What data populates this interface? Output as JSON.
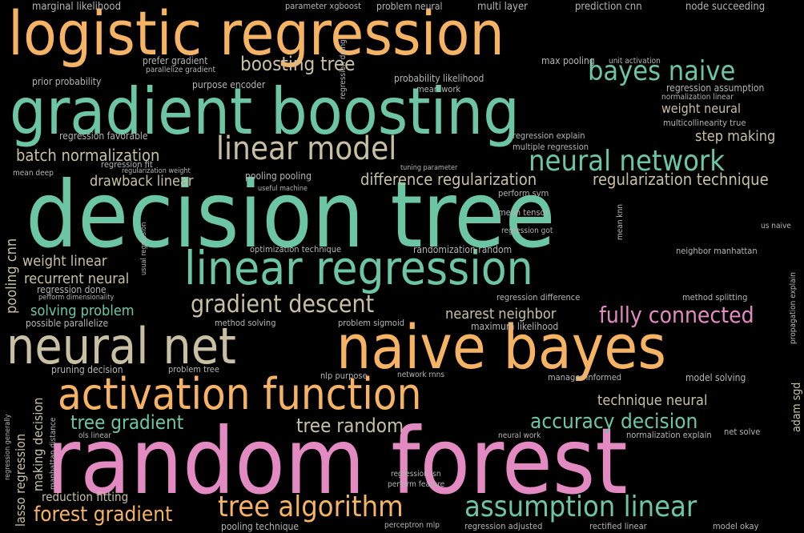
{
  "colors": {
    "orange": "#f5b363",
    "teal": "#6cc6a3",
    "pink": "#e48ac2",
    "khaki": "#c9c0a3",
    "blue": "#8ca2cc",
    "gray": "#b4b4b4",
    "background": "#000000"
  },
  "words": [
    {
      "id": "w1",
      "text": "logistic regression",
      "color": "orange"
    },
    {
      "id": "w2",
      "text": "gradient boosting",
      "color": "teal"
    },
    {
      "id": "w3",
      "text": "decision tree",
      "color": "teal"
    },
    {
      "id": "w4",
      "text": "random forest",
      "color": "pink"
    },
    {
      "id": "w5",
      "text": "naive bayes",
      "color": "orange"
    },
    {
      "id": "w6",
      "text": "neural net",
      "color": "khaki"
    },
    {
      "id": "w7",
      "text": "linear regression",
      "color": "teal"
    },
    {
      "id": "w8",
      "text": "activation function",
      "color": "orange"
    },
    {
      "id": "w9",
      "text": "linear model",
      "color": "khaki"
    },
    {
      "id": "w10",
      "text": "neural network",
      "color": "teal"
    },
    {
      "id": "w11",
      "text": "bayes naive",
      "color": "teal"
    },
    {
      "id": "w12",
      "text": "tree algorithm",
      "color": "orange"
    },
    {
      "id": "w13",
      "text": "assumption linear",
      "color": "teal"
    },
    {
      "id": "w14",
      "text": "gradient descent",
      "color": "khaki"
    },
    {
      "id": "w15",
      "text": "fully connected",
      "color": "pink"
    },
    {
      "id": "w16",
      "text": "forest gradient",
      "color": "orange"
    },
    {
      "id": "w17",
      "text": "boosting tree",
      "color": "khaki"
    },
    {
      "id": "w18",
      "text": "tree gradient",
      "color": "teal"
    },
    {
      "id": "w19",
      "text": "accuracy decision",
      "color": "teal"
    },
    {
      "id": "w20",
      "text": "tree random",
      "color": "khaki"
    },
    {
      "id": "w21",
      "text": "difference regularization",
      "color": "khaki"
    },
    {
      "id": "w22",
      "text": "regularization technique",
      "color": "khaki"
    },
    {
      "id": "w23",
      "text": "batch normalization",
      "color": "khaki"
    },
    {
      "id": "w24",
      "text": "drawback linear",
      "color": "khaki"
    },
    {
      "id": "w25",
      "text": "weight linear",
      "color": "khaki"
    },
    {
      "id": "w26",
      "text": "recurrent neural",
      "color": "khaki"
    },
    {
      "id": "w27",
      "text": "solving problem",
      "color": "teal"
    },
    {
      "id": "w28",
      "text": "nearest neighbor",
      "color": "khaki"
    },
    {
      "id": "w29",
      "text": "technique neural",
      "color": "khaki"
    },
    {
      "id": "w30",
      "text": "step making",
      "color": "khaki"
    },
    {
      "id": "w31",
      "text": "weight neural",
      "color": "khaki"
    },
    {
      "id": "w32",
      "text": "lasso regression",
      "color": "khaki"
    },
    {
      "id": "w33",
      "text": "making decision",
      "color": "khaki"
    },
    {
      "id": "w34",
      "text": "reduction fitting",
      "color": "khaki"
    },
    {
      "id": "w35",
      "text": "pooling cnn",
      "color": "khaki"
    },
    {
      "id": "w36",
      "text": "marginal likelihood",
      "color": "gray"
    },
    {
      "id": "w37",
      "text": "parameter xgboost",
      "color": "gray"
    },
    {
      "id": "w38",
      "text": "problem neural",
      "color": "gray"
    },
    {
      "id": "w39",
      "text": "multi layer",
      "color": "gray"
    },
    {
      "id": "w40",
      "text": "prediction cnn",
      "color": "gray"
    },
    {
      "id": "w41",
      "text": "node succeeding",
      "color": "gray"
    },
    {
      "id": "w42",
      "text": "prefer gradient",
      "color": "gray"
    },
    {
      "id": "w43",
      "text": "parallelize gradient",
      "color": "gray"
    },
    {
      "id": "w44",
      "text": "prior probability",
      "color": "gray"
    },
    {
      "id": "w45",
      "text": "purpose encoder",
      "color": "gray"
    },
    {
      "id": "w46",
      "text": "probability likelihood",
      "color": "gray"
    },
    {
      "id": "w47",
      "text": "mean work",
      "color": "gray"
    },
    {
      "id": "w48",
      "text": "max pooling",
      "color": "gray"
    },
    {
      "id": "w49",
      "text": "unit activation",
      "color": "gray"
    },
    {
      "id": "w50",
      "text": "regression assumption",
      "color": "gray"
    },
    {
      "id": "w51",
      "text": "normalization linear",
      "color": "gray"
    },
    {
      "id": "w52",
      "text": "multicollinearity true",
      "color": "gray"
    },
    {
      "id": "w53",
      "text": "regression favorable",
      "color": "gray"
    },
    {
      "id": "w54",
      "text": "regression fit",
      "color": "gray"
    },
    {
      "id": "w55",
      "text": "regularization weight",
      "color": "gray"
    },
    {
      "id": "w56",
      "text": "mean deep",
      "color": "gray"
    },
    {
      "id": "w57",
      "text": "regression explain",
      "color": "gray"
    },
    {
      "id": "w58",
      "text": "multiple regression",
      "color": "gray"
    },
    {
      "id": "w59",
      "text": "tuning parameter",
      "color": "gray"
    },
    {
      "id": "w60",
      "text": "pooling pooling",
      "color": "gray"
    },
    {
      "id": "w61",
      "text": "useful machine",
      "color": "gray"
    },
    {
      "id": "w62",
      "text": "perform svm",
      "color": "gray"
    },
    {
      "id": "w63",
      "text": "mean tensor",
      "color": "gray"
    },
    {
      "id": "w64",
      "text": "regression got",
      "color": "gray"
    },
    {
      "id": "w65",
      "text": "us naive",
      "color": "gray"
    },
    {
      "id": "w66",
      "text": "optimization technique",
      "color": "gray"
    },
    {
      "id": "w67",
      "text": "randomization random",
      "color": "gray"
    },
    {
      "id": "w68",
      "text": "neighbor manhattan",
      "color": "gray"
    },
    {
      "id": "w69",
      "text": "regression done",
      "color": "gray"
    },
    {
      "id": "w70",
      "text": "perform dimensionality",
      "color": "gray"
    },
    {
      "id": "w71",
      "text": "possible parallelize",
      "color": "gray"
    },
    {
      "id": "w72",
      "text": "method solving",
      "color": "gray"
    },
    {
      "id": "w73",
      "text": "problem sigmoid",
      "color": "gray"
    },
    {
      "id": "w74",
      "text": "maximum likelihood",
      "color": "gray"
    },
    {
      "id": "w75",
      "text": "regression difference",
      "color": "gray"
    },
    {
      "id": "w76",
      "text": "method splitting",
      "color": "gray"
    },
    {
      "id": "w77",
      "text": "pruning decision",
      "color": "gray"
    },
    {
      "id": "w78",
      "text": "problem tree",
      "color": "gray"
    },
    {
      "id": "w79",
      "text": "nlp purpose",
      "color": "gray"
    },
    {
      "id": "w80",
      "text": "network rnns",
      "color": "gray"
    },
    {
      "id": "w81",
      "text": "manager informed",
      "color": "gray"
    },
    {
      "id": "w82",
      "text": "model solving",
      "color": "gray"
    },
    {
      "id": "w83",
      "text": "net solve",
      "color": "gray"
    },
    {
      "id": "w84",
      "text": "ols linear",
      "color": "gray"
    },
    {
      "id": "w85",
      "text": "neural work",
      "color": "gray"
    },
    {
      "id": "w86",
      "text": "normalization explain",
      "color": "gray"
    },
    {
      "id": "w87",
      "text": "regression isn",
      "color": "gray"
    },
    {
      "id": "w88",
      "text": "perform feature",
      "color": "gray"
    },
    {
      "id": "w89",
      "text": "pooling technique",
      "color": "gray"
    },
    {
      "id": "w90",
      "text": "perceptron mlp",
      "color": "gray"
    },
    {
      "id": "w91",
      "text": "regression adjusted",
      "color": "gray"
    },
    {
      "id": "w92",
      "text": "rectified linear",
      "color": "gray"
    },
    {
      "id": "w93",
      "text": "model okay",
      "color": "gray"
    },
    {
      "id": "w94",
      "text": "adam sgd",
      "color": "khaki"
    },
    {
      "id": "w95",
      "text": "regression doing",
      "color": "gray"
    },
    {
      "id": "w96",
      "text": "usual regression",
      "color": "gray"
    },
    {
      "id": "w97",
      "text": "mean knn",
      "color": "gray"
    },
    {
      "id": "w98",
      "text": "regression generally",
      "color": "gray"
    },
    {
      "id": "w99",
      "text": "manhattan distance",
      "color": "gray"
    },
    {
      "id": "w100",
      "text": "propagation explain",
      "color": "gray"
    }
  ]
}
